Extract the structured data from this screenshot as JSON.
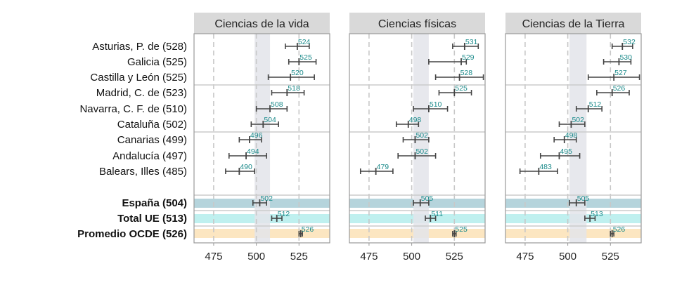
{
  "colors": {
    "panel_border": "#9a9a9a",
    "strip_fill": "#d9d9d9",
    "band_fill": "#e3e4ea",
    "grid_dashed": "#c8c8c8",
    "separator": "#cccccc",
    "espana_fill": "#b5d4dc",
    "ue_fill": "#bff0ef",
    "ocde_fill": "#fce6c1",
    "error_bar": "#444444",
    "value_text": "#1a8a8a"
  },
  "chart_data": {
    "type": "dot-errorbar-facets",
    "x_ticks": [
      475,
      500,
      525
    ],
    "xlim": [
      463.5,
      543
    ],
    "rows": [
      {
        "label": "Asturias, P. de (528)",
        "bold": false,
        "group": "region"
      },
      {
        "label": "Galicia (525)",
        "bold": false,
        "group": "region"
      },
      {
        "label": "Castilla y León (525)",
        "bold": false,
        "group": "region"
      },
      {
        "label": "Madrid, C. de (523)",
        "bold": false,
        "group": "region"
      },
      {
        "label": "Navarra, C. F. de (510)",
        "bold": false,
        "group": "region"
      },
      {
        "label": "Cataluña (502)",
        "bold": false,
        "group": "region"
      },
      {
        "label": "Canarias (499)",
        "bold": false,
        "group": "region"
      },
      {
        "label": "Andalucía (497)",
        "bold": false,
        "group": "region"
      },
      {
        "label": "Balears, Illes (485)",
        "bold": false,
        "group": "region"
      },
      {
        "label": "España (504)",
        "bold": true,
        "group": "espana"
      },
      {
        "label": "Total UE (513)",
        "bold": true,
        "group": "ue"
      },
      {
        "label": "Promedio OCDE (526)",
        "bold": true,
        "group": "ocde"
      }
    ],
    "panels": [
      {
        "title": "Ciencias de la vida",
        "band": [
          499,
          508
        ],
        "points": [
          {
            "value": 524,
            "low": 517,
            "high": 531
          },
          {
            "value": 525,
            "low": 519,
            "high": 535
          },
          {
            "value": 520,
            "low": 507,
            "high": 534
          },
          {
            "value": 518,
            "low": 509,
            "high": 528
          },
          {
            "value": 508,
            "low": 500,
            "high": 518
          },
          {
            "value": 504,
            "low": 497,
            "high": 513
          },
          {
            "value": 496,
            "low": 490,
            "high": 503
          },
          {
            "value": 494,
            "low": 484,
            "high": 506
          },
          {
            "value": 490,
            "low": 482,
            "high": 499
          },
          {
            "value": 502,
            "low": 498,
            "high": 506
          },
          {
            "value": 512,
            "low": 509,
            "high": 515
          },
          {
            "value": 526,
            "low": 525,
            "high": 527
          }
        ]
      },
      {
        "title": "Ciencias físicas",
        "band": [
          501,
          510
        ],
        "points": [
          {
            "value": 531,
            "low": 524,
            "high": 539
          },
          {
            "value": 529,
            "low": 510,
            "high": 532
          },
          {
            "value": 528,
            "low": 514,
            "high": 542
          },
          {
            "value": 525,
            "low": 516,
            "high": 535
          },
          {
            "value": 510,
            "low": 501,
            "high": 521
          },
          {
            "value": 498,
            "low": 491,
            "high": 504
          },
          {
            "value": 502,
            "low": 495,
            "high": 510
          },
          {
            "value": 502,
            "low": 492,
            "high": 514
          },
          {
            "value": 479,
            "low": 470,
            "high": 489
          },
          {
            "value": 505,
            "low": 501,
            "high": 510
          },
          {
            "value": 511,
            "low": 508,
            "high": 514
          },
          {
            "value": 525,
            "low": 524,
            "high": 526
          }
        ]
      },
      {
        "title": "Ciencias de la Tierra",
        "band": [
          501,
          511
        ],
        "points": [
          {
            "value": 532,
            "low": 526,
            "high": 538
          },
          {
            "value": 530,
            "low": 521,
            "high": 537
          },
          {
            "value": 527,
            "low": 512,
            "high": 542
          },
          {
            "value": 526,
            "low": 517,
            "high": 536
          },
          {
            "value": 512,
            "low": 505,
            "high": 520
          },
          {
            "value": 502,
            "low": 495,
            "high": 510
          },
          {
            "value": 498,
            "low": 492,
            "high": 505
          },
          {
            "value": 495,
            "low": 484,
            "high": 507
          },
          {
            "value": 483,
            "low": 472,
            "high": 494
          },
          {
            "value": 505,
            "low": 501,
            "high": 510
          },
          {
            "value": 513,
            "low": 510,
            "high": 516
          },
          {
            "value": 526,
            "low": 525,
            "high": 527
          }
        ]
      }
    ]
  }
}
